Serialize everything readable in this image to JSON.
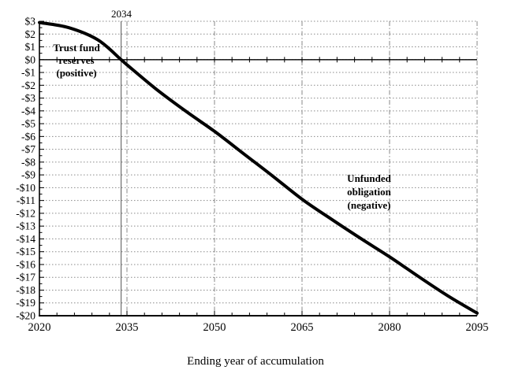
{
  "chart_data": {
    "type": "line",
    "title": "",
    "xlabel": "Ending year of accumulation",
    "ylabel": "",
    "xlim": [
      2020,
      2095
    ],
    "ylim": [
      -20,
      3
    ],
    "x_tick_values": [
      2020,
      2035,
      2050,
      2065,
      2080,
      2095
    ],
    "x_tick_labels": [
      "2020",
      "2035",
      "2050",
      "2065",
      "2080",
      "2095"
    ],
    "x_minor_tick_step_years": 3,
    "y_tick_values": [
      3,
      2,
      1,
      0,
      -1,
      -2,
      -3,
      -4,
      -5,
      -6,
      -7,
      -8,
      -9,
      -10,
      -11,
      -12,
      -13,
      -14,
      -15,
      -16,
      -17,
      -18,
      -19,
      -20
    ],
    "y_tick_labels": [
      "$3",
      "$2",
      "$1",
      "$0",
      "-$1",
      "-$2",
      "-$3",
      "-$4",
      "-$5",
      "-$6",
      "-$7",
      "-$8",
      "-$9",
      "-$10",
      "-$11",
      "-$12",
      "-$13",
      "-$14",
      "-$15",
      "-$16",
      "-$17",
      "-$18",
      "-$19",
      "-$20"
    ],
    "y_minor_tick_step": 0.5,
    "grid": {
      "horizontal_style": "dotted",
      "horizontal_every": 1,
      "vertical_style": "dash-dot",
      "vertical_every_years": 15,
      "grid_on": true
    },
    "reference_line": {
      "x": 2034
    },
    "series": [
      {
        "name": "trust-fund-reserves-unfunded-obligation",
        "x": [
          2020,
          2025,
          2030,
          2034,
          2035,
          2040,
          2045,
          2050,
          2055,
          2060,
          2065,
          2070,
          2075,
          2080,
          2085,
          2090,
          2095
        ],
        "y": [
          2.9,
          2.5,
          1.55,
          0,
          -0.4,
          -2.3,
          -4.0,
          -5.6,
          -7.35,
          -9.1,
          -10.9,
          -12.45,
          -13.95,
          -15.4,
          -16.95,
          -18.45,
          -19.8
        ]
      }
    ],
    "annotations": {
      "depletion_year": "2034",
      "trust_fund": "Trust fund\nreserves\n(positive)",
      "unfunded": "Unfunded\nobligation\n(negative)"
    },
    "colors": {
      "line": "#000000",
      "grid": "#8a8a8a",
      "reference_line": "#555555",
      "axis": "#000000",
      "background": "#ffffff",
      "text": "#000000"
    },
    "legend": "none"
  }
}
